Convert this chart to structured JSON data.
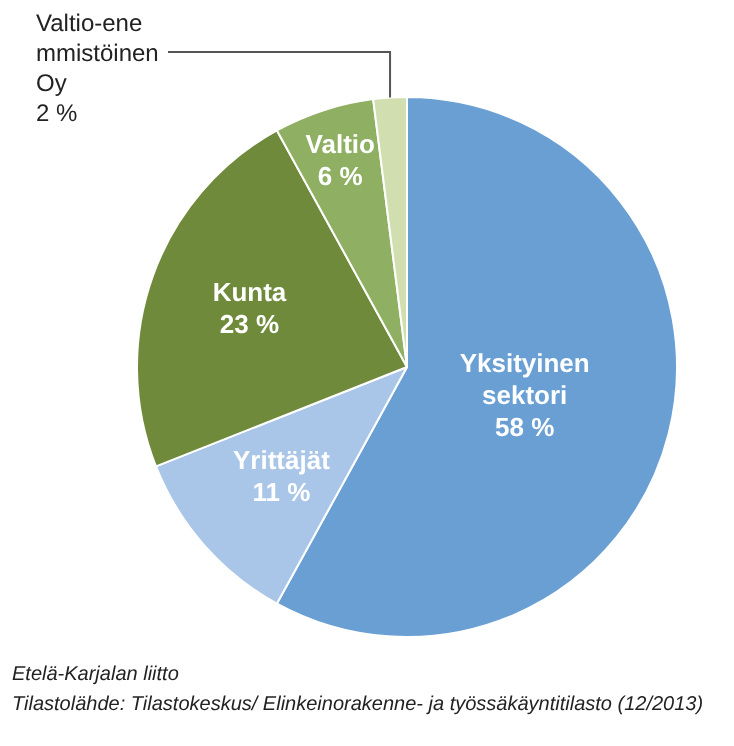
{
  "chart_data": {
    "type": "pie",
    "categories": [
      "Yksityinen sektori",
      "Yrittäjät",
      "Kunta",
      "Valtio",
      "Valtio-enemmistöinen Oy"
    ],
    "values": [
      58,
      11,
      23,
      6,
      2
    ],
    "value_labels": [
      "58 %",
      "11 %",
      "23 %",
      "6 %",
      "2 %"
    ],
    "colors": [
      "#6a9fd4",
      "#a9c6e8",
      "#6f8a3b",
      "#8fb063",
      "#d1dfb0"
    ],
    "legend": false,
    "annotations": [
      "Etelä-Karjalan liitto",
      "Tilastolähde: Tilastokeskus/ Elinkeinorakenne- ja työssäkäyntitilasto (12/2013)"
    ]
  }
}
